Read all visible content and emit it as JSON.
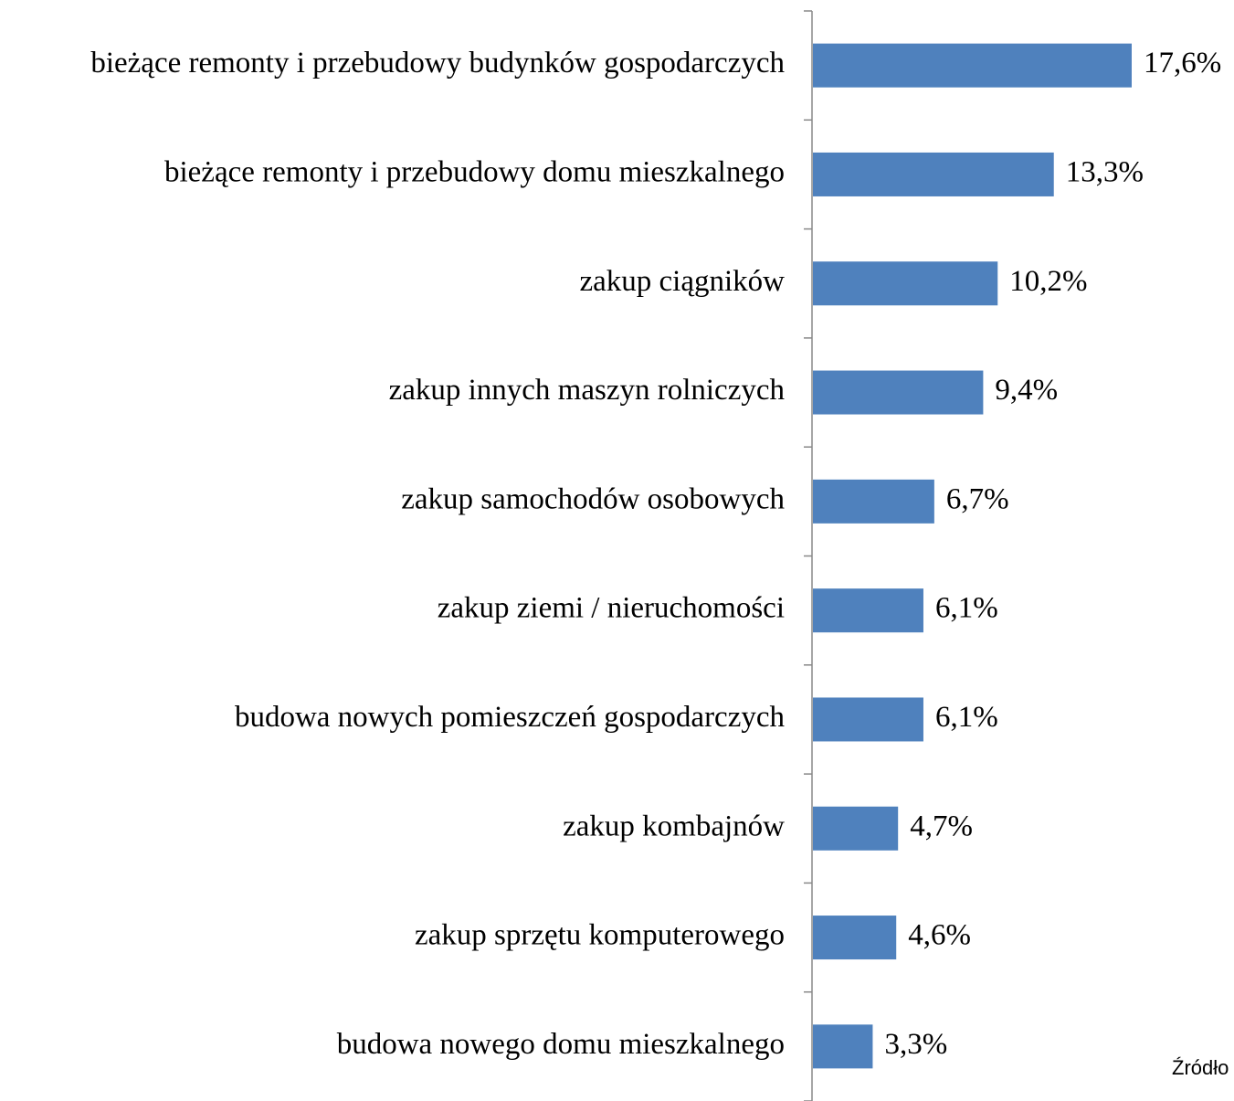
{
  "chart_data": {
    "type": "bar",
    "orientation": "horizontal",
    "categories": [
      "bieżące remonty i przebudowy budynków gospodarczych",
      "bieżące remonty i przebudowy domu mieszkalnego",
      "zakup ciągników",
      "zakup innych maszyn rolniczych",
      "zakup samochodów osobowych",
      "zakup ziemi / nieruchomości",
      "budowa nowych pomieszczeń gospodarczych",
      "zakup kombajnów",
      "zakup sprzętu komputerowego",
      "budowa nowego domu mieszkalnego"
    ],
    "values": [
      17.6,
      13.3,
      10.2,
      9.4,
      6.7,
      6.1,
      6.1,
      4.7,
      4.6,
      3.3
    ],
    "value_labels": [
      "17,6%",
      "13,3%",
      "10,2%",
      "9,4%",
      "6,7%",
      "6,1%",
      "6,1%",
      "4,7%",
      "4,6%",
      "3,3%"
    ],
    "color": "#4f81bd",
    "source": "Źródło"
  }
}
